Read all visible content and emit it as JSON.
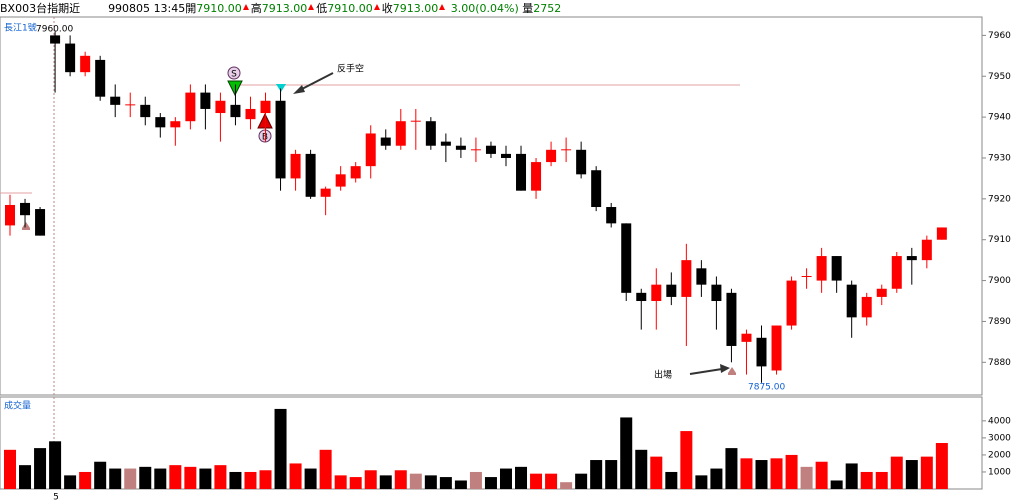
{
  "header": {
    "symbol": "BX003台指期近",
    "date": "990805",
    "time": "13:45",
    "fields": [
      {
        "label": "開",
        "value": "7910.00"
      },
      {
        "label": "高",
        "value": "7913.00"
      },
      {
        "label": "低",
        "value": "7910.00"
      },
      {
        "label": "收",
        "value": "7913.00"
      }
    ],
    "change": "3.00(0.04%)",
    "volume_label": "量",
    "volume": "2752"
  },
  "chart_data": {
    "type": "candlestick",
    "indicator_label": "長江1號",
    "volume_title": "成交量",
    "categories": [
      null,
      null,
      null,
      "5",
      null,
      null,
      null,
      null,
      null,
      null,
      null,
      null,
      null,
      null,
      null,
      null,
      null,
      null,
      null,
      null,
      null,
      null,
      null,
      null,
      null,
      null,
      null,
      null,
      null,
      null,
      null,
      null,
      null,
      null,
      null,
      null,
      null,
      null,
      null,
      null,
      null,
      null,
      null,
      null,
      null,
      null,
      null,
      null,
      null,
      null,
      null,
      null,
      null,
      null,
      null,
      null,
      null,
      null,
      null,
      null,
      null,
      null,
      null
    ],
    "open": [
      7913.5,
      7919,
      7917.5,
      7960,
      7958,
      7951,
      7954,
      7945,
      7943,
      7943,
      7940,
      7937.5,
      7939,
      7946,
      7941,
      7943,
      7939.5,
      7941,
      7944,
      7925,
      7931,
      7920.5,
      7923,
      7925,
      7928,
      7935,
      7933,
      7939,
      7939,
      7934,
      7933,
      7932,
      7933,
      7931,
      7931,
      7922,
      7929,
      7932,
      7932,
      7927,
      7918,
      7914,
      7897,
      7895,
      7899,
      7896,
      7903,
      7899,
      7897,
      7885,
      7886,
      7878,
      7889,
      7901,
      7900,
      7906,
      7899,
      7891,
      7896,
      7898,
      7906,
      7905,
      7910
    ],
    "high": [
      7921,
      7920,
      7918,
      7961,
      7960,
      7956,
      7955,
      7948,
      7946,
      7945,
      7941,
      7940,
      7948,
      7948,
      7946,
      7948,
      7945,
      7946,
      7947,
      7932,
      7932,
      7923,
      7928,
      7929,
      7938,
      7937,
      7942,
      7942,
      7940,
      7936,
      7935,
      7935,
      7934,
      7933,
      7933,
      7930,
      7934,
      7935,
      7934,
      7928,
      7919,
      7914,
      7898,
      7903,
      7902,
      7909,
      7905,
      7901,
      7898,
      7888,
      7889,
      7889,
      7901,
      7903,
      7908,
      7906,
      7900,
      7897,
      7899,
      7907,
      7908,
      7911,
      7913
    ],
    "low": [
      7911,
      7913,
      7911,
      7946,
      7950,
      7950,
      7944,
      7940,
      7940,
      7938,
      7935,
      7933,
      7937,
      7937,
      7934,
      7938,
      7937,
      7934,
      7922,
      7922,
      7920,
      7916,
      7922,
      7924,
      7925,
      7932,
      7932,
      7932,
      7932,
      7929,
      7930,
      7929,
      7930,
      7928,
      7922,
      7920,
      7928,
      7929,
      7925,
      7917,
      7913,
      7895,
      7888,
      7888,
      7894,
      7884,
      7896,
      7888,
      7880,
      7877,
      7875,
      7877,
      7888,
      7898,
      7897,
      7897,
      7886,
      7889,
      7894,
      7897,
      7899,
      7903,
      7910
    ],
    "close": [
      7918.5,
      7916,
      7911,
      7958,
      7951,
      7955,
      7945,
      7943,
      7943,
      7940,
      7937.5,
      7939,
      7946,
      7942,
      7944,
      7940,
      7942,
      7944,
      7925,
      7931,
      7920.5,
      7922.5,
      7926,
      7928,
      7936,
      7933,
      7939,
      7939,
      7933,
      7933,
      7932,
      7932,
      7931,
      7930,
      7922,
      7929,
      7932,
      7932,
      7926,
      7918,
      7914,
      7897,
      7895,
      7899,
      7896,
      7905,
      7899,
      7895,
      7884,
      7887,
      7879,
      7889,
      7900,
      7901,
      7906,
      7900,
      7891,
      7896,
      7898,
      7906,
      7905,
      7910,
      7913
    ],
    "volume": [
      2300,
      1400,
      2400,
      2800,
      800,
      1000,
      1600,
      1200,
      1200,
      1300,
      1200,
      1400,
      1300,
      1200,
      1400,
      1000,
      1000,
      1100,
      4700,
      1500,
      1200,
      2300,
      800,
      700,
      1100,
      800,
      1100,
      900,
      800,
      700,
      500,
      1000,
      700,
      1200,
      1300,
      900,
      900,
      400,
      900,
      1700,
      1700,
      4200,
      2300,
      1900,
      1000,
      3400,
      800,
      1200,
      2400,
      1800,
      1700,
      1800,
      2000,
      1300,
      1600,
      500,
      1500,
      1000,
      1000,
      1900,
      1700,
      1900,
      2700
    ],
    "up_color": "#ff0000",
    "down_color": "#000000",
    "flat_color": "#c08080",
    "ylim": [
      7872,
      7964.5
    ],
    "yticks": [
      7880,
      7890,
      7900,
      7910,
      7920,
      7930,
      7940,
      7950,
      7960
    ],
    "y2lim": [
      0,
      5400
    ],
    "y2ticks": [
      1000,
      2000,
      3000,
      4000
    ],
    "annotations": [
      {
        "text": "7960.00"
      },
      {
        "text": "反手空"
      },
      {
        "text": "出場"
      },
      {
        "text": "7875.00"
      }
    ]
  }
}
